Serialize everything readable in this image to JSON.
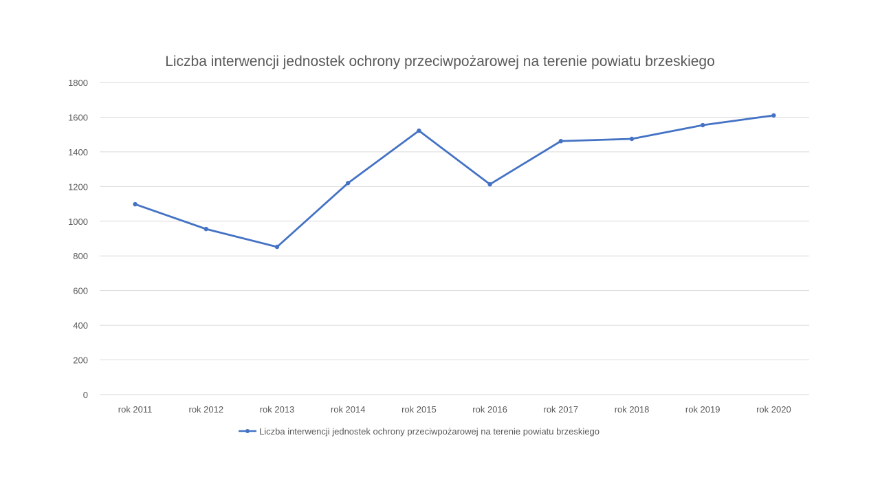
{
  "chart_data": {
    "type": "line",
    "title": "Liczba interwencji jednostek ochrony przeciwpożarowej na terenie powiatu brzeskiego",
    "categories": [
      "rok 2011",
      "rok 2012",
      "rok 2013",
      "rok 2014",
      "rok 2015",
      "rok 2016",
      "rok 2017",
      "rok 2018",
      "rok 2019",
      "rok 2020"
    ],
    "series": [
      {
        "name": "Liczba interwencji jednostek ochrony przeciwpożarowej na terenie powiatu brzeskiego",
        "values": [
          1098,
          955,
          852,
          1220,
          1522,
          1213,
          1462,
          1475,
          1554,
          1610
        ],
        "color": "#4472C4"
      }
    ],
    "yticks": [
      "0",
      "200",
      "400",
      "600",
      "800",
      "1000",
      "1200",
      "1400",
      "1600",
      "1800"
    ],
    "ylim": [
      0,
      1800
    ],
    "grid": true,
    "legend": "bottom",
    "xlabel": "",
    "ylabel": ""
  }
}
